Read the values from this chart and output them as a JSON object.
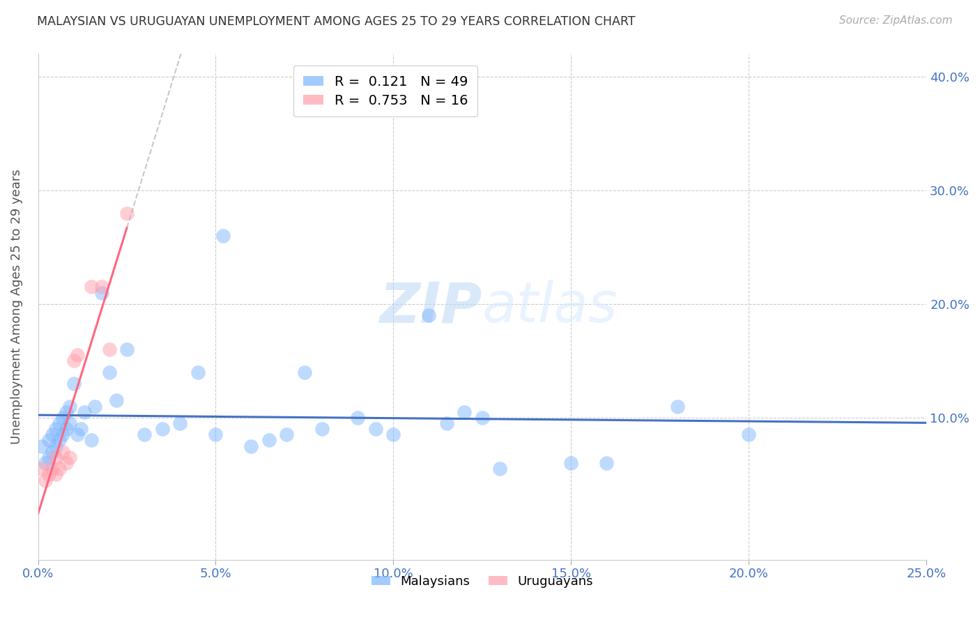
{
  "title": "MALAYSIAN VS URUGUAYAN UNEMPLOYMENT AMONG AGES 25 TO 29 YEARS CORRELATION CHART",
  "source": "Source: ZipAtlas.com",
  "ylabel": "Unemployment Among Ages 25 to 29 years",
  "xlim": [
    0.0,
    0.25
  ],
  "ylim": [
    -0.025,
    0.42
  ],
  "xticks": [
    0.0,
    0.05,
    0.1,
    0.15,
    0.2,
    0.25
  ],
  "xtick_labels": [
    "0.0%",
    "5.0%",
    "10.0%",
    "15.0%",
    "20.0%",
    "25.0%"
  ],
  "yticks_right": [
    0.1,
    0.2,
    0.3,
    0.4
  ],
  "ytick_labels_right": [
    "10.0%",
    "20.0%",
    "30.0%",
    "40.0%"
  ],
  "legend_r_malaysian": "0.121",
  "legend_n_malaysian": "49",
  "legend_r_uruguayan": "0.753",
  "legend_n_uruguayan": "16",
  "malaysian_color": "#7EB6FF",
  "uruguayan_color": "#FF9EAA",
  "trend_malaysian_color": "#4472C4",
  "trend_uruguayan_color": "#FF6680",
  "trend_extend_color": "#C8C8C8",
  "watermark_zip": "ZIP",
  "watermark_atlas": "atlas",
  "malaysian_x": [
    0.001,
    0.002,
    0.003,
    0.003,
    0.004,
    0.004,
    0.005,
    0.005,
    0.006,
    0.006,
    0.007,
    0.007,
    0.008,
    0.008,
    0.009,
    0.009,
    0.01,
    0.011,
    0.012,
    0.013,
    0.015,
    0.016,
    0.018,
    0.02,
    0.022,
    0.025,
    0.03,
    0.035,
    0.04,
    0.045,
    0.05,
    0.052,
    0.06,
    0.065,
    0.07,
    0.075,
    0.08,
    0.09,
    0.095,
    0.1,
    0.11,
    0.115,
    0.12,
    0.125,
    0.13,
    0.15,
    0.16,
    0.18,
    0.2
  ],
  "malaysian_y": [
    0.075,
    0.06,
    0.065,
    0.08,
    0.07,
    0.085,
    0.075,
    0.09,
    0.08,
    0.095,
    0.085,
    0.1,
    0.09,
    0.105,
    0.095,
    0.11,
    0.13,
    0.085,
    0.09,
    0.105,
    0.08,
    0.11,
    0.21,
    0.14,
    0.115,
    0.16,
    0.085,
    0.09,
    0.095,
    0.14,
    0.085,
    0.26,
    0.075,
    0.08,
    0.085,
    0.14,
    0.09,
    0.1,
    0.09,
    0.085,
    0.19,
    0.095,
    0.105,
    0.1,
    0.055,
    0.06,
    0.06,
    0.11,
    0.085
  ],
  "uruguayan_x": [
    0.001,
    0.002,
    0.003,
    0.004,
    0.005,
    0.005,
    0.006,
    0.007,
    0.008,
    0.009,
    0.01,
    0.011,
    0.015,
    0.018,
    0.02,
    0.025
  ],
  "uruguayan_y": [
    0.055,
    0.045,
    0.05,
    0.055,
    0.05,
    0.065,
    0.055,
    0.07,
    0.06,
    0.065,
    0.15,
    0.155,
    0.215,
    0.215,
    0.16,
    0.28
  ]
}
